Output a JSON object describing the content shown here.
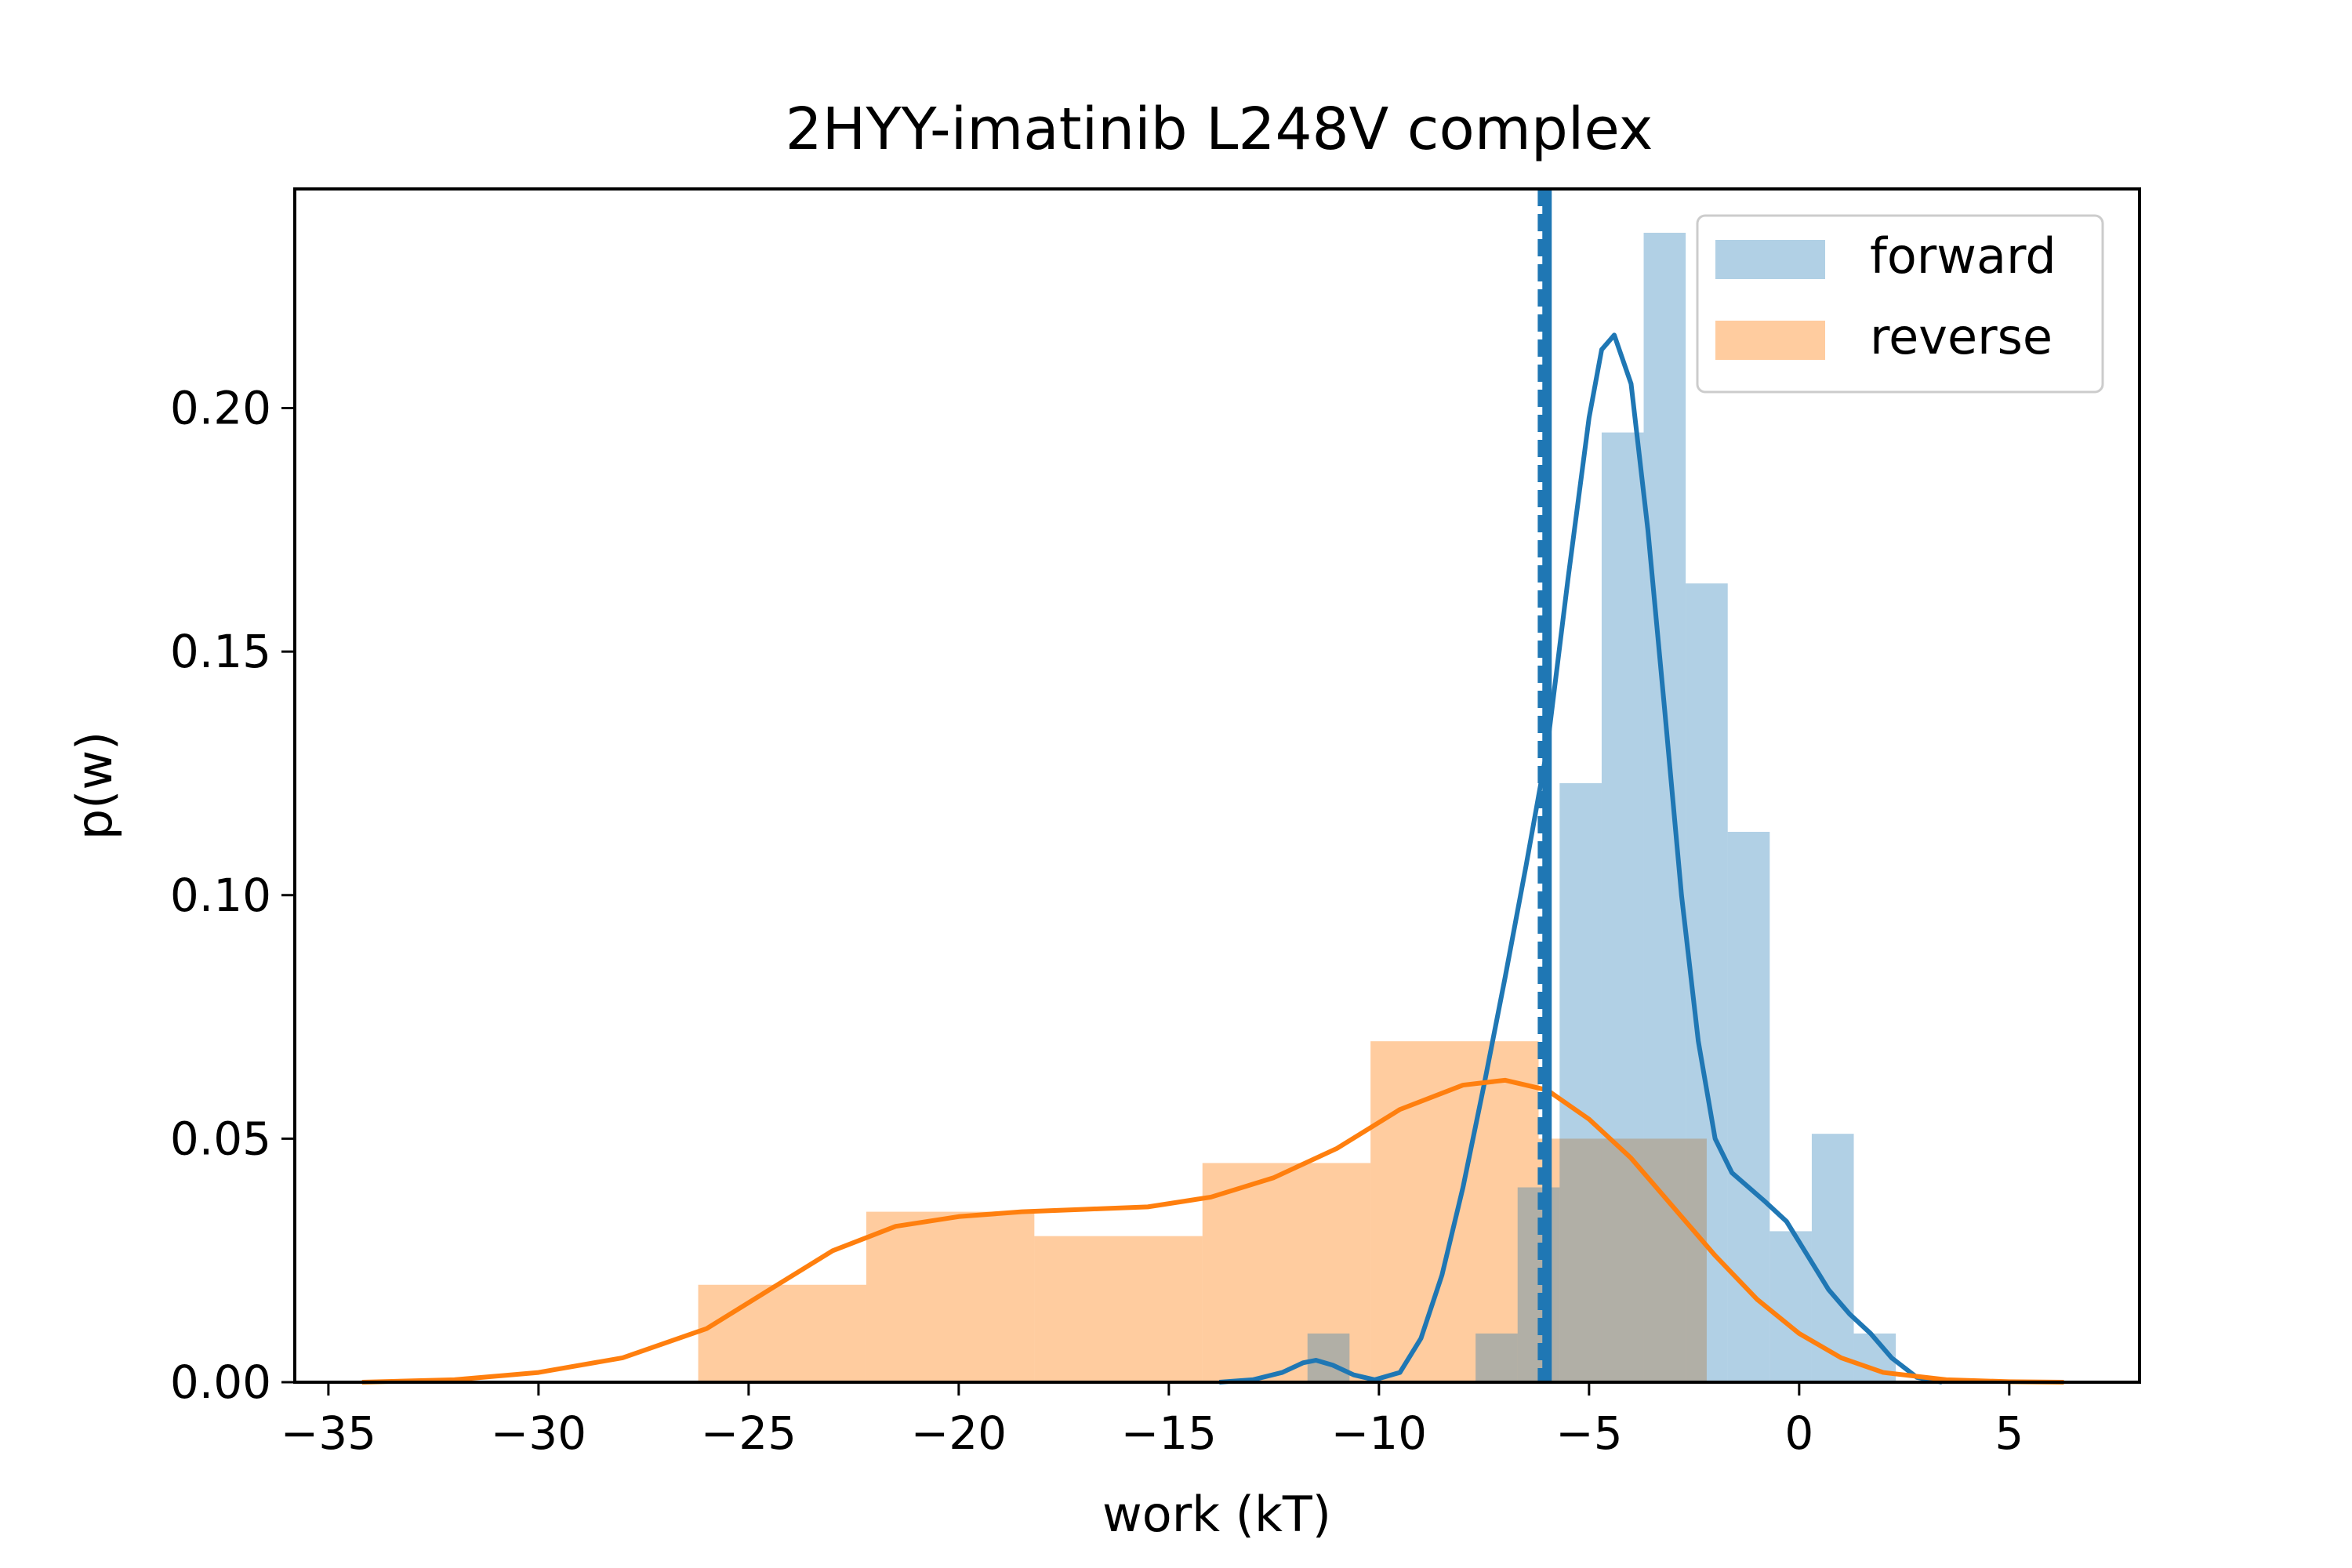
{
  "chart_data": {
    "type": "histogram",
    "title": "2HYY-imatinib L248V complex",
    "xlabel": "work (kT)",
    "ylabel": "p(w)",
    "xlim": [
      -35.8,
      8.1
    ],
    "ylim": [
      0,
      0.245
    ],
    "x_ticks": [
      -35,
      -30,
      -25,
      -20,
      -15,
      -10,
      -5,
      0,
      5
    ],
    "x_tick_labels": [
      "−35",
      "−30",
      "−25",
      "−20",
      "−15",
      "−10",
      "−5",
      "0",
      "5"
    ],
    "y_ticks": [
      0,
      0.05,
      0.1,
      0.15,
      0.2
    ],
    "y_tick_labels": [
      "0.00",
      "0.05",
      "0.10",
      "0.15",
      "0.20"
    ],
    "grid": false,
    "legend_position": "top-right",
    "colors": {
      "forward": "#1f77b4",
      "reverse": "#ff7f0e"
    },
    "series": [
      {
        "name": "forward",
        "bin_edges": [
          -12.7,
          -11.7,
          -10.7,
          -9.7,
          -8.7,
          -7.7,
          -6.7,
          -5.7,
          -4.7,
          -3.7,
          -2.7,
          -1.7,
          -0.7,
          0.3,
          1.3,
          2.3
        ],
        "heights": [
          0,
          0.01,
          0,
          0,
          0,
          0.01,
          0.04,
          0.123,
          0.195,
          0.236,
          0.164,
          0.113,
          0.031,
          0.051,
          0.01,
          0.021
        ],
        "kde": {
          "x": [
            -13.8,
            -13.0,
            -12.3,
            -11.8,
            -11.5,
            -11.1,
            -10.6,
            -10.1,
            -9.5,
            -9.0,
            -8.5,
            -8.0,
            -7.5,
            -7.0,
            -6.5,
            -6.0,
            -5.5,
            -5.0,
            -4.7,
            -4.4,
            -4.0,
            -3.6,
            -3.2,
            -2.8,
            -2.4,
            -2.0,
            -1.6,
            -1.2,
            -0.8,
            -0.3,
            0.2,
            0.7,
            1.2,
            1.7,
            2.2,
            2.8,
            3.4
          ],
          "y": [
            0,
            0.0005,
            0.002,
            0.004,
            0.0045,
            0.0035,
            0.0015,
            0.0005,
            0.002,
            0.009,
            0.022,
            0.04,
            0.061,
            0.083,
            0.106,
            0.13,
            0.165,
            0.198,
            0.212,
            0.215,
            0.205,
            0.175,
            0.138,
            0.1,
            0.07,
            0.05,
            0.043,
            0.04,
            0.037,
            0.033,
            0.026,
            0.019,
            0.014,
            0.01,
            0.005,
            0.001,
            0
          ]
        }
      },
      {
        "name": "reverse",
        "bin_edges": [
          -26.2,
          -22.2,
          -18.2,
          -14.2,
          -10.2,
          -6.2,
          -2.2
        ],
        "heights": [
          0.02,
          0.035,
          0.03,
          0.045,
          0.07,
          0.05
        ],
        "kde": {
          "x": [
            -34.2,
            -32,
            -30,
            -28,
            -26,
            -24.5,
            -23,
            -21.5,
            -20,
            -18.5,
            -17,
            -15.5,
            -14,
            -12.5,
            -11,
            -9.5,
            -8,
            -7,
            -6,
            -5,
            -4,
            -3,
            -2,
            -1,
            0,
            1,
            2,
            3.5,
            5,
            6.3
          ],
          "y": [
            0,
            0.0005,
            0.002,
            0.005,
            0.011,
            0.019,
            0.027,
            0.032,
            0.034,
            0.035,
            0.0355,
            0.036,
            0.038,
            0.042,
            0.048,
            0.056,
            0.061,
            0.062,
            0.06,
            0.054,
            0.046,
            0.036,
            0.026,
            0.017,
            0.01,
            0.005,
            0.002,
            0.0005,
            0.0001,
            0
          ]
        }
      }
    ],
    "vlines": [
      {
        "series": "forward",
        "x": -6.0,
        "style": "solid"
      },
      {
        "series": "forward",
        "x": -6.1,
        "style": "dashed"
      }
    ]
  }
}
